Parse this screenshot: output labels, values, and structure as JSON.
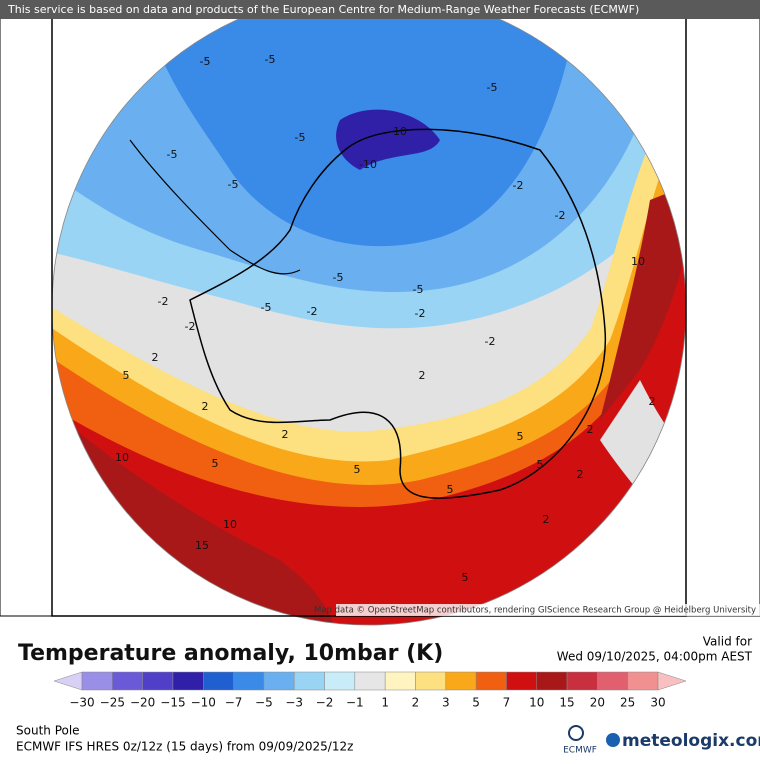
{
  "banner": "This service is based on data and products of the European Centre for Medium-Range Weather Forecasts (ECMWF)",
  "map": {
    "attribution": "Map data © OpenStreetMap contributors, rendering GIScience Research Group @ Heidelberg University",
    "contour_labels": [
      "-5",
      "-5",
      "-5",
      "-5",
      "-5",
      "-10",
      "-10",
      "-5",
      "-2",
      "-5",
      "-5",
      "-5",
      "-2",
      "-2",
      "-2",
      "-2",
      "-2",
      "-2",
      "2",
      "2",
      "2",
      "2",
      "5",
      "5",
      "5",
      "5",
      "10",
      "10",
      "10",
      "15",
      "2",
      "5",
      "5",
      "2",
      "2",
      "2",
      "5"
    ]
  },
  "panel": {
    "title": "Temperature anomaly, 10mbar (K)",
    "valid_label": "Valid for",
    "valid_time": "Wed 09/10/2025, 04:00pm AEST",
    "region": "South Pole",
    "model": "ECMWF IFS HRES 0z/12z (15 days) from 09/09/2025/12z",
    "ecmwf_logo": "ECMWF",
    "brand": "meteologix.com"
  },
  "colorbar": {
    "labels": [
      "−30",
      "−25",
      "−20",
      "−15",
      "−10",
      "−7",
      "−5",
      "−3",
      "−2",
      "−1",
      "1",
      "2",
      "3",
      "5",
      "7",
      "10",
      "15",
      "20",
      "25",
      "30"
    ],
    "colors": [
      "#d8d0f5",
      "#9a8fe6",
      "#6a5ad8",
      "#5040c8",
      "#3020a8",
      "#1f5fd0",
      "#3a8ae8",
      "#6ab0f0",
      "#9ad4f5",
      "#c8ecf8",
      "#e6e6e6",
      "#fff4c0",
      "#fde080",
      "#f8a818",
      "#f06010",
      "#d01010",
      "#a81818",
      "#c83040",
      "#e06070",
      "#f09090",
      "#f8c0c0"
    ]
  }
}
